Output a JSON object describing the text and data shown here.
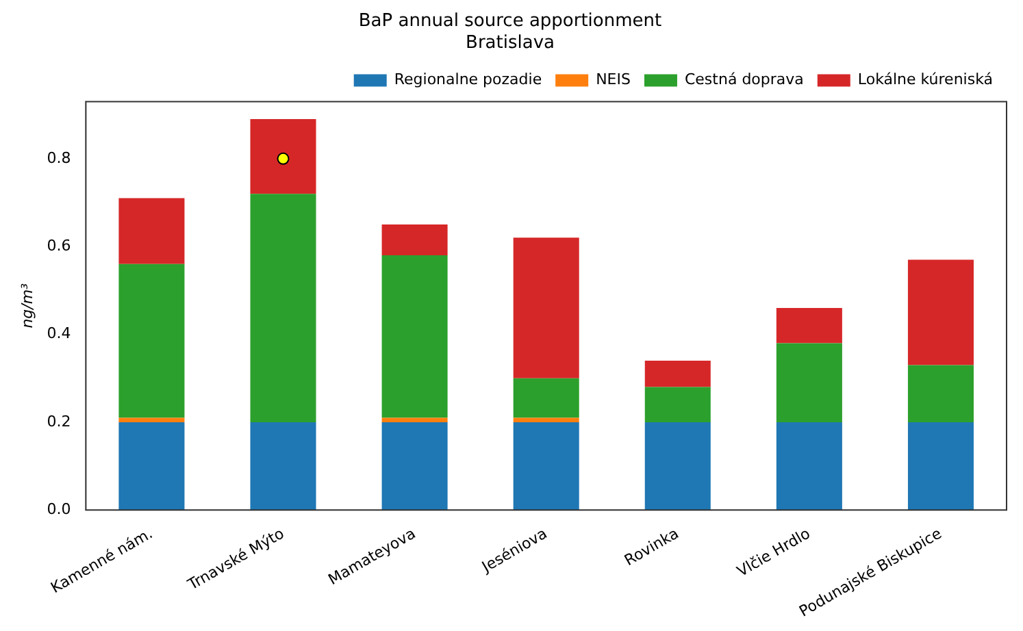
{
  "chart_data": {
    "type": "bar",
    "title": "BaP annual source apportionment",
    "subtitle": "Bratislava",
    "ylabel": "ng/m³",
    "categories": [
      "Kamenné nám.",
      "Trnavské Mýto",
      "Mamateyova",
      "Jeséniova",
      "Rovinka",
      "Vlčie Hrdlo",
      "Podunajské Biskupice"
    ],
    "stacked": true,
    "ylim": [
      0,
      0.93
    ],
    "yticks": [
      {
        "value": 0,
        "label": "0.0"
      },
      {
        "value": 0.2,
        "label": "0.2"
      },
      {
        "value": 0.4,
        "label": "0.4"
      },
      {
        "value": 0.6,
        "label": "0.6"
      },
      {
        "value": 0.8,
        "label": "0.8"
      }
    ],
    "grid": false,
    "legend": "top right",
    "series": [
      {
        "name": "Regionalne pozadie",
        "color": "#1f77b4",
        "values": [
          0.2,
          0.2,
          0.2,
          0.2,
          0.2,
          0.2,
          0.2
        ]
      },
      {
        "name": "NEIS",
        "color": "#ff7f0e",
        "values": [
          0.01,
          0,
          0.01,
          0.01,
          0,
          0,
          0
        ]
      },
      {
        "name": "Cestná doprava",
        "color": "#2ca02c",
        "values": [
          0.35,
          0.52,
          0.37,
          0.09,
          0.08,
          0.18,
          0.13
        ]
      },
      {
        "name": "Lokálne kúreniská",
        "color": "#d62728",
        "values": [
          0.15,
          0.17,
          0.07,
          0.32,
          0.06,
          0.08,
          0.24
        ]
      },
      {
        "type": "scatter",
        "color": "#ffff00",
        "x": [
          "Trnavské Mýto"
        ],
        "values": [
          0.8
        ],
        "marker": "circle"
      }
    ]
  }
}
